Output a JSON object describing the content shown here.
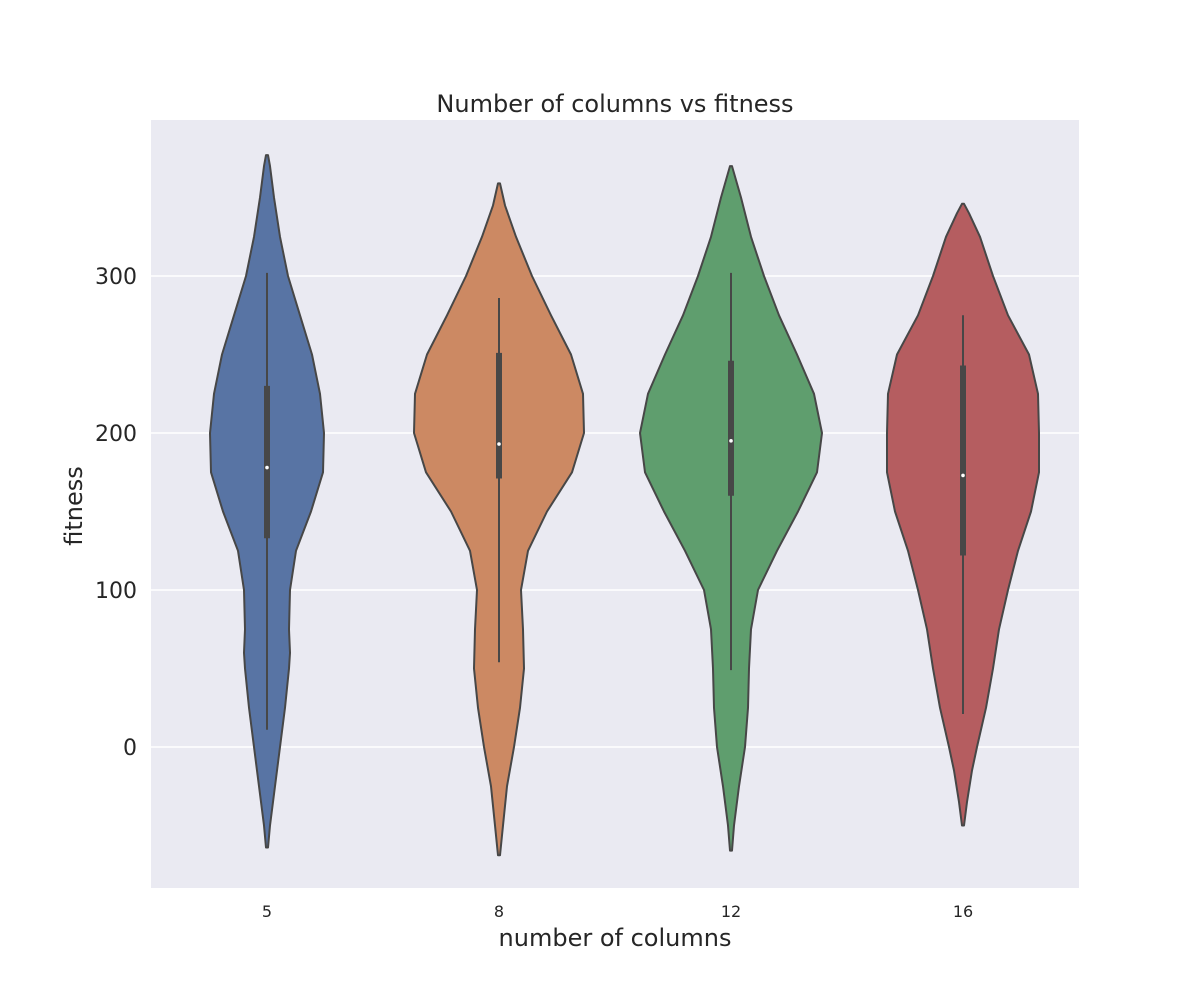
{
  "chart_data": {
    "type": "violin",
    "title": "Number of columns vs fitness",
    "xlabel": "number of columns",
    "ylabel": "fitness",
    "ylim": [
      -90,
      400
    ],
    "yticks": [
      0,
      100,
      200,
      300
    ],
    "grid": true,
    "categories": [
      "5",
      "8",
      "12",
      "16"
    ],
    "colors": [
      "#5874a4",
      "#cc8963",
      "#5f9e6e",
      "#b55d60"
    ],
    "series": [
      {
        "category": "5",
        "median": 178,
        "q1": 133,
        "q3": 230,
        "whisker_low": 11,
        "whisker_high": 302,
        "kde_min": -64,
        "kde_max": 377,
        "profile": [
          [
            -64,
            1
          ],
          [
            -50,
            3
          ],
          [
            -25,
            8
          ],
          [
            0,
            13
          ],
          [
            25,
            18
          ],
          [
            50,
            22
          ],
          [
            60,
            23
          ],
          [
            75,
            22
          ],
          [
            100,
            23
          ],
          [
            125,
            29
          ],
          [
            150,
            44
          ],
          [
            175,
            56
          ],
          [
            200,
            57
          ],
          [
            225,
            53
          ],
          [
            250,
            45
          ],
          [
            275,
            33
          ],
          [
            300,
            21
          ],
          [
            325,
            13
          ],
          [
            350,
            7
          ],
          [
            370,
            3
          ],
          [
            377,
            1
          ]
        ]
      },
      {
        "category": "8",
        "median": 193,
        "q1": 171,
        "q3": 251,
        "whisker_low": 54,
        "whisker_high": 286,
        "kde_min": -69,
        "kde_max": 359,
        "profile": [
          [
            -69,
            1
          ],
          [
            -50,
            4
          ],
          [
            -25,
            8
          ],
          [
            0,
            15
          ],
          [
            25,
            21
          ],
          [
            50,
            25
          ],
          [
            75,
            24
          ],
          [
            100,
            22
          ],
          [
            125,
            29
          ],
          [
            150,
            48
          ],
          [
            175,
            73
          ],
          [
            200,
            85
          ],
          [
            225,
            84
          ],
          [
            250,
            72
          ],
          [
            275,
            52
          ],
          [
            300,
            33
          ],
          [
            325,
            17
          ],
          [
            345,
            6
          ],
          [
            359,
            1
          ]
        ]
      },
      {
        "category": "12",
        "median": 195,
        "q1": 160,
        "q3": 246,
        "whisker_low": 49,
        "whisker_high": 302,
        "kde_min": -66,
        "kde_max": 370,
        "profile": [
          [
            -66,
            1
          ],
          [
            -50,
            3
          ],
          [
            -25,
            8
          ],
          [
            0,
            14
          ],
          [
            25,
            17
          ],
          [
            50,
            18
          ],
          [
            75,
            20
          ],
          [
            100,
            27
          ],
          [
            125,
            46
          ],
          [
            150,
            67
          ],
          [
            175,
            86
          ],
          [
            200,
            91
          ],
          [
            225,
            83
          ],
          [
            250,
            66
          ],
          [
            275,
            48
          ],
          [
            300,
            33
          ],
          [
            325,
            20
          ],
          [
            350,
            10
          ],
          [
            370,
            1
          ]
        ]
      },
      {
        "category": "16",
        "median": 173,
        "q1": 122,
        "q3": 243,
        "whisker_low": 21,
        "whisker_high": 275,
        "kde_min": -50,
        "kde_max": 346,
        "profile": [
          [
            -50,
            1
          ],
          [
            -35,
            4
          ],
          [
            -15,
            9
          ],
          [
            0,
            14
          ],
          [
            25,
            23
          ],
          [
            50,
            30
          ],
          [
            75,
            36
          ],
          [
            100,
            45
          ],
          [
            125,
            55
          ],
          [
            150,
            68
          ],
          [
            175,
            76
          ],
          [
            200,
            76
          ],
          [
            225,
            75
          ],
          [
            250,
            66
          ],
          [
            275,
            45
          ],
          [
            300,
            30
          ],
          [
            325,
            17
          ],
          [
            340,
            6
          ],
          [
            346,
            1
          ]
        ]
      }
    ]
  }
}
